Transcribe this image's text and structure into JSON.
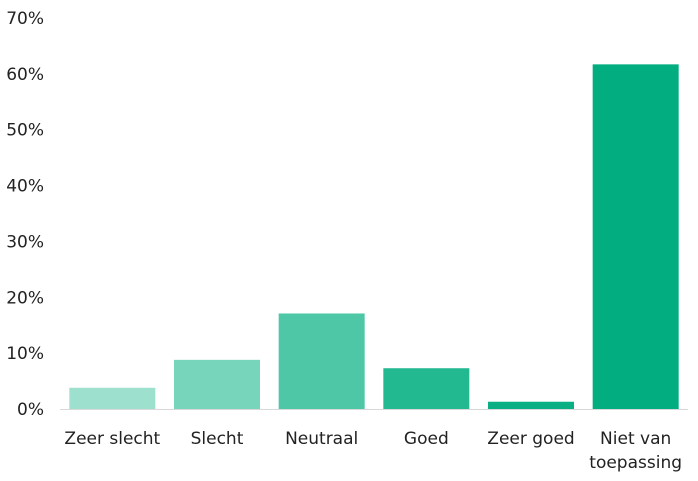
{
  "chart_data": {
    "type": "bar",
    "categories": [
      "Zeer slecht",
      "Slecht",
      "Neutraal",
      "Goed",
      "Zeer goed",
      "Niet van toepassing"
    ],
    "category_lines": [
      [
        "Zeer slecht"
      ],
      [
        "Slecht"
      ],
      [
        "Neutraal"
      ],
      [
        "Goed"
      ],
      [
        "Zeer goed"
      ],
      [
        "Niet van",
        "toepassing"
      ]
    ],
    "values": [
      3.8,
      8.8,
      17.1,
      7.3,
      1.3,
      61.7
    ],
    "unit": "%",
    "ylim": [
      0,
      70
    ],
    "yticks": [
      0,
      10,
      20,
      30,
      40,
      50,
      60,
      70
    ],
    "ytick_labels": [
      "0%",
      "10%",
      "20%",
      "30%",
      "40%",
      "50%",
      "60%",
      "70%"
    ],
    "grid": false,
    "title": "",
    "xlabel": "",
    "ylabel": "",
    "colors": [
      "#9ce0cd",
      "#77d5bb",
      "#4dc7a6",
      "#22b990",
      "#0aaf83",
      "#02ae7f"
    ],
    "axis_color": "#d9d9d9"
  }
}
